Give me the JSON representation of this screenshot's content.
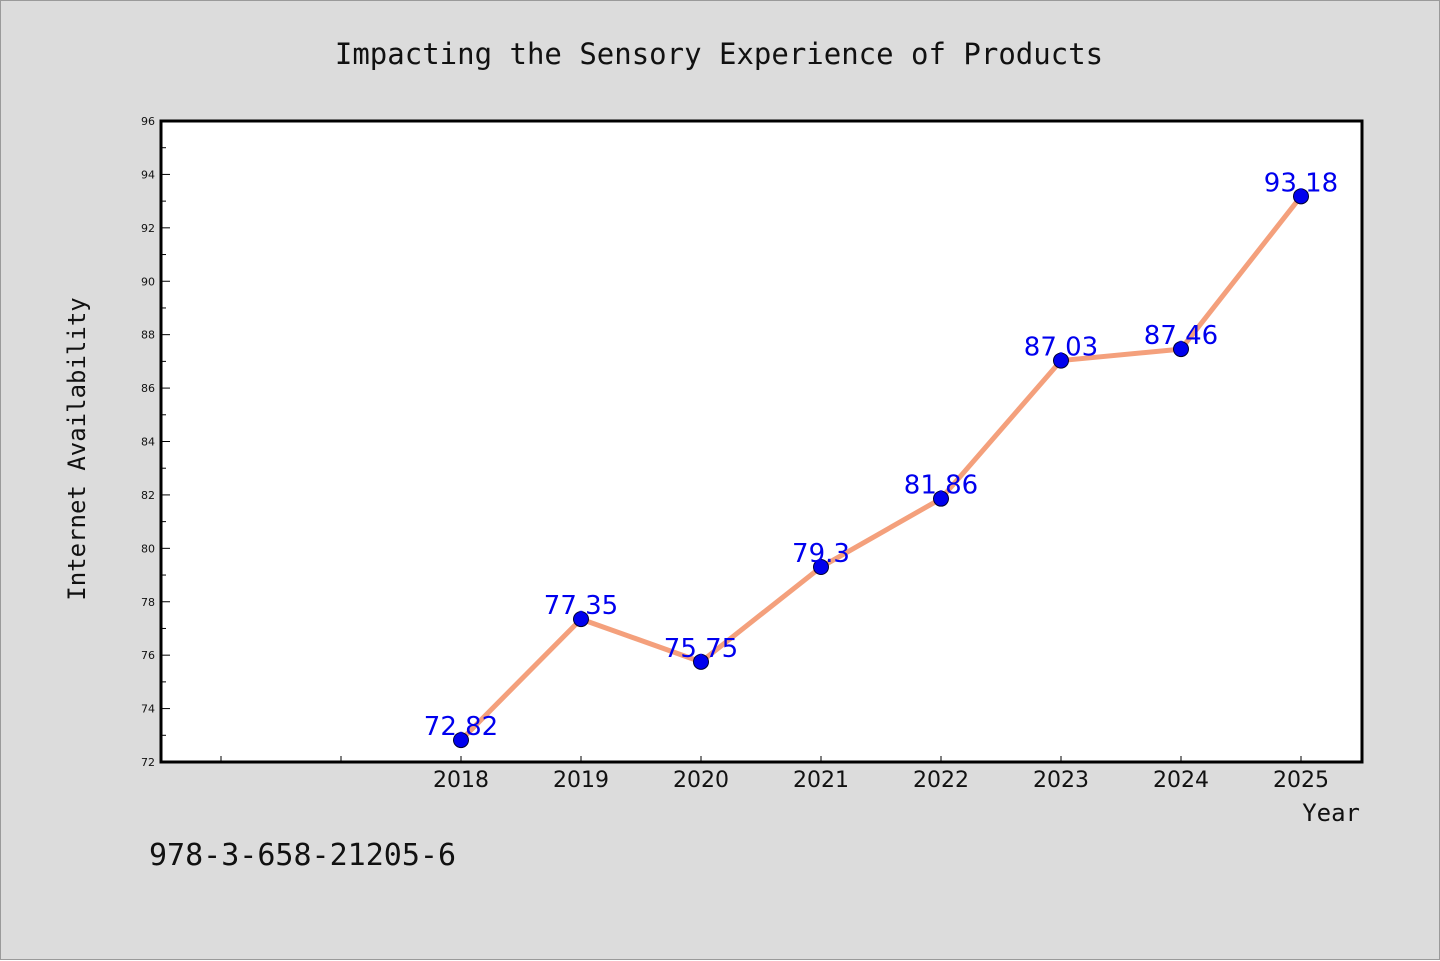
{
  "chart_data": {
    "type": "line",
    "title": "Impacting the Sensory Experience of Products",
    "xlabel": "Year",
    "ylabel": "Internet Availability",
    "categories": [
      "2018",
      "2019",
      "2020",
      "2021",
      "2022",
      "2023",
      "2024",
      "2025"
    ],
    "series": [
      {
        "values": [
          72.82,
          77.35,
          75.75,
          79.3,
          81.86,
          87.03,
          87.46,
          93.18
        ],
        "labels": [
          "72.82",
          "77.35",
          "75.75",
          "79.3",
          "81.86",
          "87.03",
          "87.46",
          "93.18"
        ]
      }
    ],
    "ylim": [
      72,
      96
    ],
    "yticks": [
      "72",
      "74",
      "76",
      "78",
      "80",
      "82",
      "84",
      "86",
      "88",
      "90",
      "92",
      "94",
      "96"
    ],
    "grid": false,
    "colors": {
      "line": "#f4a07c",
      "marker": "#0000ee",
      "label": "#0000ee",
      "background": "#dcdcdc",
      "plot_area": "#ffffff"
    }
  },
  "footer": {
    "isbn": "978-3-658-21205-6"
  }
}
